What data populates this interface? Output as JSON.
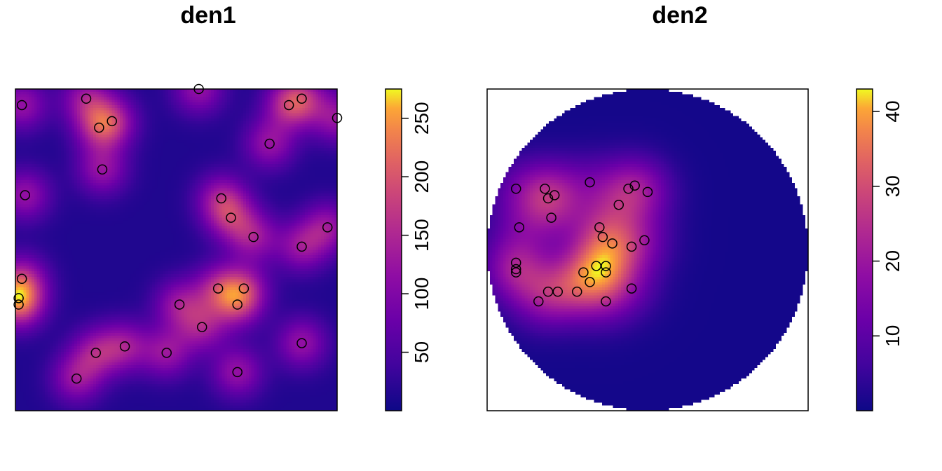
{
  "chart_data": [
    {
      "type": "heatmap",
      "title": "den1",
      "window": "square",
      "colormap": "plasma",
      "colorbar": {
        "min": 0,
        "max": 275,
        "ticks": [
          50,
          100,
          150,
          200,
          250
        ]
      },
      "xlim": [
        0,
        1
      ],
      "ylim": [
        0,
        1
      ],
      "points": [
        [
          0.02,
          0.95
        ],
        [
          0.22,
          0.97
        ],
        [
          0.26,
          0.88
        ],
        [
          0.3,
          0.9
        ],
        [
          0.57,
          1.0
        ],
        [
          0.85,
          0.95
        ],
        [
          0.89,
          0.97
        ],
        [
          1.0,
          0.91
        ],
        [
          0.79,
          0.83
        ],
        [
          0.27,
          0.75
        ],
        [
          0.03,
          0.67
        ],
        [
          0.64,
          0.66
        ],
        [
          0.67,
          0.6
        ],
        [
          0.74,
          0.54
        ],
        [
          0.97,
          0.57
        ],
        [
          0.89,
          0.51
        ],
        [
          0.02,
          0.41
        ],
        [
          0.01,
          0.35
        ],
        [
          0.01,
          0.33
        ],
        [
          0.51,
          0.33
        ],
        [
          0.63,
          0.38
        ],
        [
          0.71,
          0.38
        ],
        [
          0.69,
          0.33
        ],
        [
          0.58,
          0.26
        ],
        [
          0.89,
          0.21
        ],
        [
          0.34,
          0.2
        ],
        [
          0.25,
          0.18
        ],
        [
          0.47,
          0.18
        ],
        [
          0.19,
          0.1
        ],
        [
          0.69,
          0.12
        ]
      ]
    },
    {
      "type": "heatmap",
      "title": "den2",
      "window": "disc",
      "colormap": "plasma",
      "colorbar": {
        "min": 0,
        "max": 43,
        "ticks": [
          10,
          20,
          30,
          40
        ]
      },
      "xlim": [
        0,
        1
      ],
      "ylim": [
        0,
        1
      ],
      "points": [
        [
          0.09,
          0.69
        ],
        [
          0.18,
          0.69
        ],
        [
          0.19,
          0.66
        ],
        [
          0.21,
          0.67
        ],
        [
          0.32,
          0.71
        ],
        [
          0.44,
          0.69
        ],
        [
          0.46,
          0.7
        ],
        [
          0.5,
          0.68
        ],
        [
          0.41,
          0.64
        ],
        [
          0.1,
          0.57
        ],
        [
          0.2,
          0.6
        ],
        [
          0.35,
          0.57
        ],
        [
          0.36,
          0.54
        ],
        [
          0.39,
          0.52
        ],
        [
          0.45,
          0.51
        ],
        [
          0.49,
          0.53
        ],
        [
          0.09,
          0.46
        ],
        [
          0.09,
          0.44
        ],
        [
          0.09,
          0.43
        ],
        [
          0.3,
          0.43
        ],
        [
          0.34,
          0.45
        ],
        [
          0.37,
          0.45
        ],
        [
          0.37,
          0.43
        ],
        [
          0.32,
          0.4
        ],
        [
          0.22,
          0.37
        ],
        [
          0.19,
          0.37
        ],
        [
          0.28,
          0.37
        ],
        [
          0.16,
          0.34
        ],
        [
          0.37,
          0.34
        ],
        [
          0.45,
          0.38
        ]
      ]
    }
  ],
  "titles": {
    "panel1": "den1",
    "panel2": "den2"
  }
}
